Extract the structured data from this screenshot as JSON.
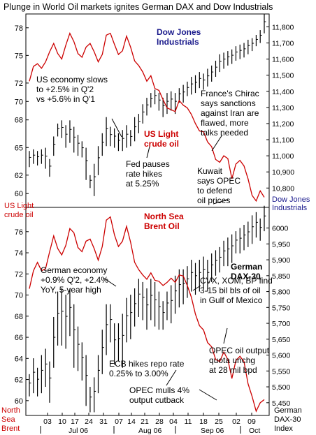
{
  "colors": {
    "oil": "#cc0000",
    "equity": "#000000",
    "panel_title_oil": "#cc0000",
    "panel_title_equity": "#1a1a8c",
    "frame": "#000000"
  },
  "chart_data": [
    {
      "type": "line",
      "title": "Plunge in World Oil markets ignites German DAX and Dow Industrials",
      "left_axis_label": "US Light crude oil",
      "right_axis_label": "Dow Jones Industrials",
      "left_ticks": [
        60,
        62,
        65,
        68,
        70,
        72,
        75,
        78
      ],
      "right_ticks": [
        10800,
        10900,
        11000,
        11100,
        11200,
        11300,
        11400,
        11500,
        11600,
        11700,
        11800
      ],
      "right_tick_labels": [
        "10,800",
        "10,900",
        "11,000",
        "11,100",
        "11,200",
        "11,300",
        "11,400",
        "11,500",
        "11,600",
        "11,700",
        "11,800"
      ],
      "ylim_left": [
        58.5,
        79.5
      ],
      "ylim_right": [
        10680,
        11880
      ],
      "series": [
        {
          "name": "US Light crude oil",
          "axis": "left",
          "values": [
            72.2,
            73.8,
            74.1,
            73.6,
            74.3,
            75.4,
            76.3,
            75.2,
            74.6,
            76.1,
            77.4,
            76.5,
            75.2,
            74.8,
            75.9,
            76.3,
            75.4,
            74.3,
            75.1,
            77.2,
            77.4,
            76.2,
            75.1,
            75.5,
            77.1,
            75.9,
            74.4,
            73.9,
            73.2,
            72.2,
            72.8,
            71.4,
            71.2,
            70.2,
            69.3,
            69.1,
            68.9,
            70.1,
            69.6,
            69.3,
            68.6,
            67.6,
            66.8,
            66.7,
            65.6,
            65.1,
            63.7,
            63.4,
            64.1,
            63.8,
            61.6,
            63.2,
            63.6,
            63.0,
            61.6,
            59.8,
            59.2,
            60.3,
            59.6
          ],
          "annotation_labels": [
            "US Light",
            "crude oil"
          ]
        },
        {
          "name": "Dow Jones Industrials",
          "axis": "right",
          "type": "ohlc",
          "ranges": [
            [
              11030,
              10930
            ],
            [
              11040,
              10950
            ],
            [
              11030,
              10940
            ],
            [
              11040,
              10950
            ],
            [
              11050,
              10920
            ],
            [
              10980,
              10870
            ],
            [
              11120,
              11000
            ],
            [
              11200,
              11120
            ],
            [
              11220,
              11110
            ],
            [
              11190,
              11050
            ],
            [
              11220,
              11080
            ],
            [
              11180,
              11020
            ],
            [
              11130,
              11000
            ],
            [
              11090,
              10990
            ],
            [
              11050,
              10850
            ],
            [
              10880,
              10800
            ],
            [
              10950,
              10750
            ],
            [
              11060,
              10880
            ],
            [
              11140,
              11000
            ],
            [
              11240,
              11060
            ],
            [
              11180,
              11060
            ],
            [
              11170,
              11050
            ],
            [
              11140,
              11030
            ],
            [
              11160,
              11030
            ],
            [
              11190,
              11050
            ],
            [
              11160,
              11060
            ],
            [
              11240,
              11090
            ],
            [
              11260,
              11140
            ],
            [
              11320,
              11200
            ],
            [
              11360,
              11250
            ],
            [
              11390,
              11300
            ],
            [
              11410,
              11320
            ],
            [
              11390,
              11280
            ],
            [
              11360,
              11240
            ],
            [
              11390,
              11260
            ],
            [
              11400,
              11280
            ],
            [
              11390,
              11260
            ],
            [
              11420,
              11330
            ],
            [
              11440,
              11330
            ],
            [
              11460,
              11370
            ],
            [
              11490,
              11380
            ],
            [
              11500,
              11390
            ],
            [
              11520,
              11420
            ],
            [
              11510,
              11410
            ],
            [
              11540,
              11430
            ],
            [
              11560,
              11460
            ],
            [
              11590,
              11490
            ],
            [
              11630,
              11520
            ],
            [
              11640,
              11540
            ],
            [
              11650,
              11560
            ],
            [
              11660,
              11570
            ],
            [
              11680,
              11590
            ],
            [
              11690,
              11600
            ],
            [
              11700,
              11610
            ],
            [
              11720,
              11630
            ],
            [
              11730,
              11650
            ],
            [
              11750,
              11680
            ],
            [
              11780,
              11700
            ],
            [
              11880,
              11760
            ]
          ],
          "annotation_labels": [
            "Dow Jones",
            "Industrials"
          ]
        }
      ],
      "annotations": [
        {
          "lines": [
            "US economy slows",
            "to +2.5% in Q'2",
            "vs +5.6% in Q'1"
          ]
        },
        {
          "lines": [
            "France's Chirac",
            "says sanctions",
            "against Iran are",
            "flawed, more",
            "talks needed"
          ]
        },
        {
          "lines": [
            "Fed pauses",
            "rate hikes",
            "at 5.25%"
          ]
        },
        {
          "lines": [
            "Kuwait",
            "says OPEC",
            "to defend",
            "oil prices"
          ]
        }
      ]
    },
    {
      "type": "line",
      "left_axis_label": "North Sea Brent",
      "right_axis_label": "German DAX-30 Index",
      "left_ticks": [
        60,
        62,
        64,
        66,
        68,
        70,
        72,
        74,
        76
      ],
      "right_ticks": [
        5450,
        5500,
        5550,
        5600,
        5650,
        5700,
        5750,
        5800,
        5850,
        5900,
        5950,
        6000
      ],
      "right_tick_labels": [
        "5,450",
        "5,500",
        "5,550",
        "5,600",
        "5,650",
        "5,700",
        "5,750",
        "5,800",
        "5,850",
        "5,900",
        "5,950",
        "6000"
      ],
      "ylim_left": [
        58.6,
        78.3
      ],
      "ylim_right": [
        5410,
        6065
      ],
      "series": [
        {
          "name": "North Sea Brent",
          "axis": "left",
          "values": [
            70.6,
            72.3,
            73.1,
            72.3,
            72.5,
            74.1,
            75.6,
            74.4,
            73.8,
            74.7,
            76.3,
            75.9,
            74.5,
            74.1,
            75.1,
            75.3,
            74.4,
            73.3,
            74.6,
            77.1,
            77.4,
            75.7,
            74.6,
            75.1,
            76.5,
            75.0,
            73.1,
            72.4,
            71.9,
            71.5,
            72.1,
            71.4,
            71.3,
            70.9,
            71.2,
            71.6,
            71.2,
            71.9,
            71.8,
            70.9,
            69.8,
            68.2,
            67.1,
            66.7,
            65.5,
            65.1,
            63.9,
            63.7,
            64.6,
            63.9,
            62.1,
            63.8,
            64.2,
            63.7,
            61.6,
            60.4,
            59.0,
            59.8,
            60.1
          ],
          "annotation_labels": [
            "North Sea",
            "Brent Oil"
          ]
        },
        {
          "name": "German DAX-30",
          "axis": "right",
          "type": "ohlc",
          "ranges": [
            [
              5540,
              5470
            ],
            [
              5590,
              5480
            ],
            [
              5560,
              5470
            ],
            [
              5600,
              5480
            ],
            [
              5620,
              5500
            ],
            [
              5580,
              5450
            ],
            [
              5720,
              5560
            ],
            [
              5800,
              5630
            ],
            [
              5810,
              5630
            ],
            [
              5790,
              5620
            ],
            [
              5810,
              5660
            ],
            [
              5760,
              5560
            ],
            [
              5690,
              5550
            ],
            [
              5640,
              5520
            ],
            [
              5600,
              5440
            ],
            [
              5500,
              5420
            ],
            [
              5530,
              5420
            ],
            [
              5600,
              5480
            ],
            [
              5680,
              5540
            ],
            [
              5760,
              5600
            ],
            [
              5760,
              5640
            ],
            [
              5700,
              5570
            ],
            [
              5700,
              5580
            ],
            [
              5730,
              5560
            ],
            [
              5780,
              5640
            ],
            [
              5790,
              5650
            ],
            [
              5810,
              5690
            ],
            [
              5840,
              5720
            ],
            [
              5830,
              5710
            ],
            [
              5810,
              5680
            ],
            [
              5840,
              5710
            ],
            [
              5830,
              5690
            ],
            [
              5800,
              5680
            ],
            [
              5770,
              5680
            ],
            [
              5800,
              5710
            ],
            [
              5820,
              5700
            ],
            [
              5850,
              5730
            ],
            [
              5870,
              5750
            ],
            [
              5870,
              5760
            ],
            [
              5880,
              5780
            ],
            [
              5900,
              5800
            ],
            [
              5890,
              5790
            ],
            [
              5900,
              5800
            ],
            [
              5910,
              5810
            ],
            [
              5900,
              5800
            ],
            [
              5920,
              5830
            ],
            [
              5930,
              5850
            ],
            [
              5940,
              5860
            ],
            [
              5960,
              5880
            ],
            [
              5970,
              5880
            ],
            [
              5980,
              5890
            ],
            [
              5990,
              5920
            ],
            [
              6000,
              5920
            ],
            [
              6010,
              5930
            ],
            [
              6020,
              5940
            ],
            [
              6040,
              5950
            ],
            [
              6050,
              5970
            ],
            [
              6030,
              5960
            ],
            [
              6070,
              5990
            ]
          ],
          "annotation_labels": [
            "German",
            "DAX-30"
          ]
        }
      ],
      "annotations": [
        {
          "lines": [
            "German economy",
            "+0.9% Q'2, +2.4%",
            "YoY, 5-year high"
          ]
        },
        {
          "lines": [
            "CVX, XOM, BP find",
            "3-15 bil bls of oil",
            "in Gulf of Mexico"
          ]
        },
        {
          "lines": [
            "OPEC oil output",
            "quota unchg",
            "at 28 mil bpd"
          ]
        },
        {
          "lines": [
            "ECB hikes repo rate",
            "0.25% to 3.00%"
          ]
        },
        {
          "lines": [
            "OPEC mulls 4%",
            "output cutback"
          ]
        }
      ]
    }
  ],
  "x_axis": {
    "day_labels": [
      "03",
      "10",
      "17",
      "24",
      "31",
      "07",
      "14",
      "21",
      "28",
      "04",
      "11",
      "18",
      "25",
      "02",
      "09"
    ],
    "month_labels": [
      "Jul 06",
      "Aug 06",
      "Sep 06",
      "Oct"
    ]
  }
}
